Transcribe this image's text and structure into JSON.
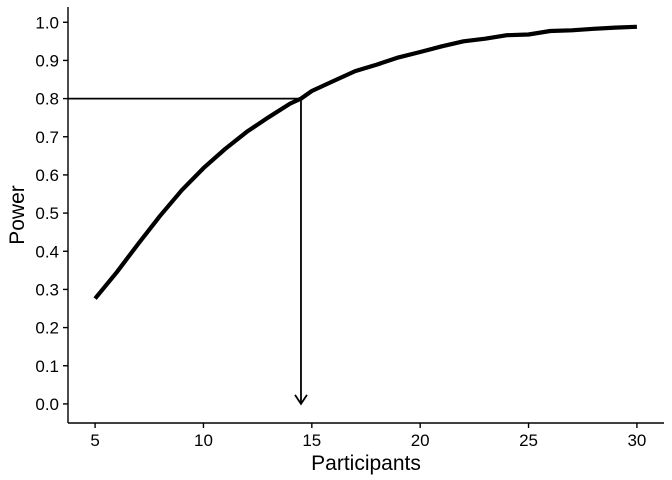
{
  "chart_data": {
    "type": "line",
    "xlabel": "Participants",
    "ylabel": "Power",
    "xlim": [
      3.75,
      31.25
    ],
    "ylim": [
      -0.05,
      1.04
    ],
    "xticks": [
      5,
      10,
      15,
      20,
      25,
      30
    ],
    "yticks": [
      0.0,
      0.1,
      0.2,
      0.3,
      0.4,
      0.5,
      0.6,
      0.7,
      0.8,
      0.9,
      1.0
    ],
    "ytick_labels": [
      "0.0",
      "0.1",
      "0.2",
      "0.3",
      "0.4",
      "0.5",
      "0.6",
      "0.7",
      "0.8",
      "0.9",
      "1.0"
    ],
    "grid": false,
    "series": [
      {
        "x": [
          5,
          6,
          7,
          8,
          9,
          10,
          11,
          12,
          13,
          14,
          14.5,
          15,
          16,
          17,
          18,
          19,
          20,
          21,
          22,
          23,
          24,
          25,
          26,
          27,
          28,
          29,
          30
        ],
        "values": [
          0.276,
          0.345,
          0.42,
          0.493,
          0.56,
          0.618,
          0.668,
          0.713,
          0.751,
          0.787,
          0.8,
          0.82,
          0.846,
          0.872,
          0.889,
          0.908,
          0.922,
          0.937,
          0.95,
          0.957,
          0.966,
          0.968,
          0.977,
          0.979,
          0.983,
          0.986,
          0.988
        ]
      }
    ],
    "annotations": {
      "threshold_power": 0.8,
      "required_participants": 14.5
    },
    "colors": {
      "line": "#000000",
      "background": "#ffffff"
    }
  }
}
